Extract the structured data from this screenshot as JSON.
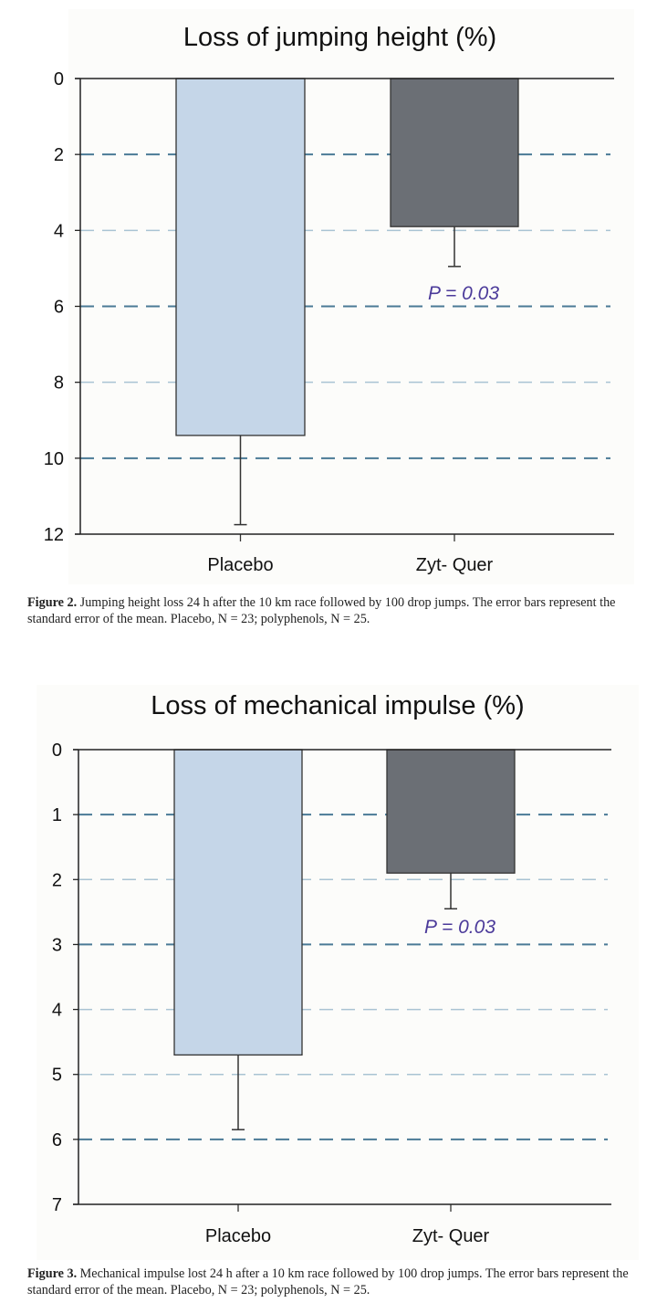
{
  "chart_data": [
    {
      "type": "bar",
      "title": "Loss of jumping height (%)",
      "categories": [
        "Placebo",
        "Zyt- Quer"
      ],
      "values": [
        9.4,
        3.9
      ],
      "error_upper": [
        11.75,
        4.95
      ],
      "ylim": [
        0,
        12
      ],
      "y_inverted": true,
      "yticks": [
        0,
        2,
        4,
        6,
        8,
        10,
        12
      ],
      "gridlines": [
        2,
        4,
        6,
        8,
        10
      ],
      "annotation": "P = 0.03",
      "xlabel": "",
      "ylabel": "",
      "colors": {
        "Placebo": "#c5d6e8",
        "Zyt- Quer": "#6b6f75",
        "annotation": "#4b3a9a",
        "grid_major": "#4a7a96",
        "grid_minor": "#a9c3d3"
      },
      "caption": {
        "label": "Figure 2.",
        "text": " Jumping height loss 24 h after the 10 km race followed by 100 drop jumps. The error bars represent the standard error of the mean. Placebo, N = 23; polyphenols, N = 25."
      }
    },
    {
      "type": "bar",
      "title": "Loss of mechanical impulse (%)",
      "categories": [
        "Placebo",
        "Zyt- Quer"
      ],
      "values": [
        4.7,
        1.9
      ],
      "error_upper": [
        5.85,
        2.45
      ],
      "ylim": [
        0,
        7
      ],
      "y_inverted": true,
      "yticks": [
        0,
        1,
        2,
        3,
        4,
        5,
        6,
        7
      ],
      "gridlines": [
        1,
        2,
        3,
        4,
        5,
        6
      ],
      "annotation": "P = 0.03",
      "xlabel": "",
      "ylabel": "",
      "colors": {
        "Placebo": "#c5d6e8",
        "Zyt- Quer": "#6b6f75",
        "annotation": "#4b3a9a",
        "grid_major": "#4a7a96",
        "grid_minor": "#a9c3d3"
      },
      "caption": {
        "label": "Figure 3.",
        "text": " Mechanical impulse lost 24 h after a 10 km race followed by 100 drop jumps. The error bars represent the standard error of the mean. Placebo, N = 23; polyphenols, N = 25."
      }
    }
  ]
}
